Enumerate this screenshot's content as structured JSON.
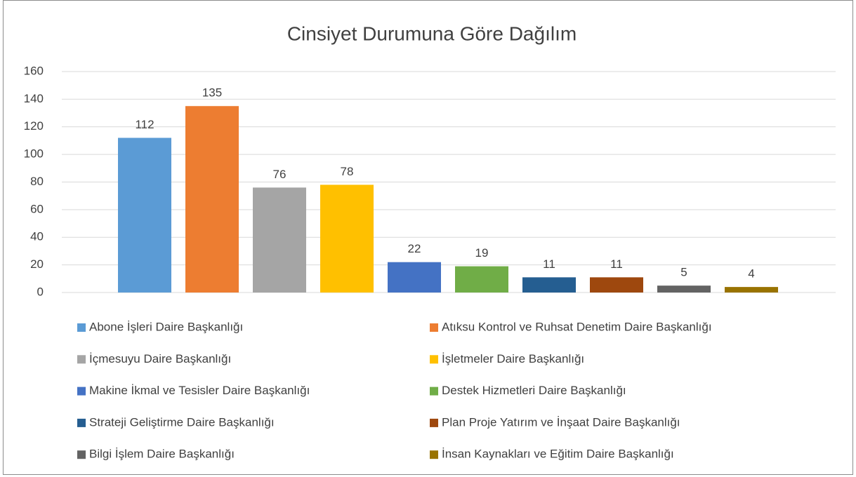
{
  "chart_data": {
    "type": "bar",
    "title": "Cinsiyet Durumuna Göre Dağılım",
    "categories": [
      "Abone İşleri Daire Başkanlığı",
      "Atıksu Kontrol ve Ruhsat Denetim Daire Başkanlığı",
      "İçmesuyu Daire Başkanlığı",
      "İşletmeler Daire Başkanlığı",
      "Makine İkmal ve Tesisler Daire Başkanlığı",
      "Destek Hizmetleri Daire Başkanlığı",
      "Strateji Geliştirme Daire Başkanlığı",
      "Plan Proje Yatırım ve İnşaat Daire Başkanlığı",
      "Bilgi İşlem Daire Başkanlığı",
      "İnsan Kaynakları ve Eğitim Daire Başkanlığı"
    ],
    "values": [
      112,
      135,
      76,
      78,
      22,
      19,
      11,
      11,
      5,
      4
    ],
    "colors": [
      "#5b9bd5",
      "#ed7d31",
      "#a5a5a5",
      "#ffc000",
      "#4472c4",
      "#70ad47",
      "#255e91",
      "#9e480e",
      "#636363",
      "#997300"
    ],
    "ylim": [
      0,
      160
    ],
    "yticks": [
      0,
      20,
      40,
      60,
      80,
      100,
      120,
      140,
      160
    ],
    "grid": true,
    "legend": "bottom"
  }
}
